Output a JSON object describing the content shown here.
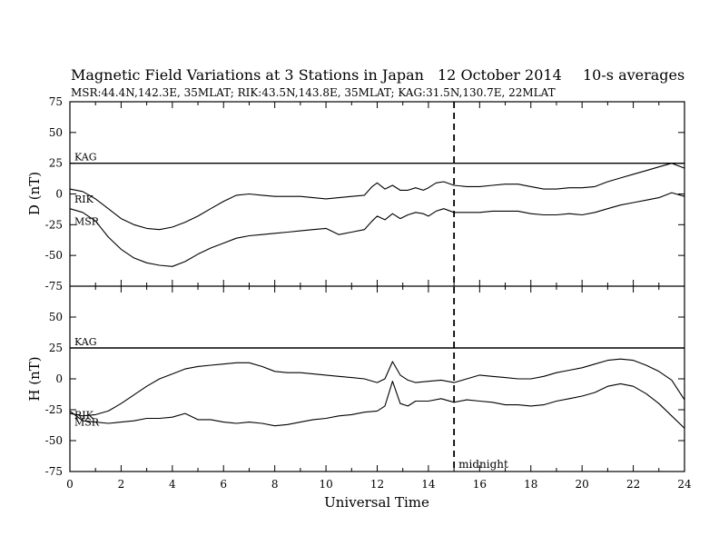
{
  "header": {
    "title": "Magnetic Field Variations at 3 Stations in Japan",
    "date": "12 October 2014",
    "averaging": "10-s averages",
    "stations": "MSR:44.4N,142.3E, 35MLAT;  RIK:43.5N,143.8E, 35MLAT;  KAG:31.5N,130.7E, 22MLAT"
  },
  "chart_data": [
    {
      "type": "line",
      "panel": "D",
      "ylabel": "D (nT)",
      "xlabel": "",
      "xlim": [
        0,
        24
      ],
      "ylim": [
        -75,
        75
      ],
      "yticks": [
        75,
        50,
        25,
        0,
        -25,
        -50,
        -75
      ],
      "xticks": [
        0,
        2,
        4,
        6,
        8,
        10,
        12,
        14,
        16,
        18,
        20,
        22,
        24
      ],
      "series": [
        {
          "name": "KAG",
          "x": [
            0,
            24
          ],
          "values": [
            25,
            25
          ]
        },
        {
          "name": "RIK",
          "x": [
            0,
            0.5,
            1,
            1.5,
            2,
            2.5,
            3,
            3.5,
            4,
            4.5,
            5,
            5.5,
            6,
            6.5,
            7,
            7.5,
            8,
            8.5,
            9,
            9.5,
            10,
            10.5,
            11,
            11.5,
            11.8,
            12,
            12.3,
            12.6,
            12.9,
            13.2,
            13.5,
            13.8,
            14,
            14.3,
            14.6,
            15,
            15.5,
            16,
            16.5,
            17,
            17.5,
            18,
            18.5,
            19,
            19.5,
            20,
            20.5,
            21,
            21.5,
            22,
            22.5,
            23,
            23.5,
            24
          ],
          "values": [
            4,
            2,
            -4,
            -12,
            -20,
            -25,
            -28,
            -29,
            -27,
            -23,
            -18,
            -12,
            -6,
            -1,
            0,
            -1,
            -2,
            -2,
            -2,
            -3,
            -4,
            -3,
            -2,
            -1,
            6,
            9,
            4,
            7,
            3,
            3,
            5,
            3,
            5,
            9,
            10,
            7,
            6,
            6,
            7,
            8,
            8,
            6,
            4,
            4,
            5,
            5,
            6,
            10,
            13,
            16,
            19,
            22,
            25,
            21
          ]
        },
        {
          "name": "MSR",
          "x": [
            0,
            0.5,
            1,
            1.5,
            2,
            2.5,
            3,
            3.5,
            4,
            4.5,
            5,
            5.5,
            6,
            6.5,
            7,
            7.5,
            8,
            8.5,
            9,
            9.5,
            10,
            10.5,
            11,
            11.5,
            11.8,
            12,
            12.3,
            12.6,
            12.9,
            13.2,
            13.5,
            13.8,
            14,
            14.3,
            14.6,
            15,
            15.5,
            16,
            16.5,
            17,
            17.5,
            18,
            18.5,
            19,
            19.5,
            20,
            20.5,
            21,
            21.5,
            22,
            22.5,
            23,
            23.5,
            24
          ],
          "values": [
            -12,
            -15,
            -22,
            -35,
            -45,
            -52,
            -56,
            -58,
            -59,
            -55,
            -49,
            -44,
            -40,
            -36,
            -34,
            -33,
            -32,
            -31,
            -30,
            -29,
            -28,
            -33,
            -31,
            -29,
            -22,
            -18,
            -21,
            -16,
            -20,
            -17,
            -15,
            -16,
            -18,
            -14,
            -12,
            -15,
            -15,
            -15,
            -14,
            -14,
            -14,
            -16,
            -17,
            -17,
            -16,
            -17,
            -15,
            -12,
            -9,
            -7,
            -5,
            -3,
            1,
            -2
          ]
        }
      ]
    },
    {
      "type": "line",
      "panel": "H",
      "ylabel": "H (nT)",
      "xlabel": "Universal Time",
      "xlim": [
        0,
        24
      ],
      "ylim": [
        -75,
        75
      ],
      "yticks": [
        75,
        50,
        25,
        0,
        -25,
        -50,
        -75
      ],
      "xticks": [
        0,
        2,
        4,
        6,
        8,
        10,
        12,
        14,
        16,
        18,
        20,
        22,
        24
      ],
      "series": [
        {
          "name": "KAG",
          "x": [
            0,
            24
          ],
          "values": [
            25,
            25
          ]
        },
        {
          "name": "RIK",
          "x": [
            0,
            0.5,
            1,
            1.5,
            2,
            2.5,
            3,
            3.5,
            4,
            4.5,
            5,
            5.5,
            6,
            6.5,
            7,
            7.5,
            8,
            8.5,
            9,
            9.5,
            10,
            10.5,
            11,
            11.5,
            12,
            12.3,
            12.6,
            12.9,
            13.2,
            13.5,
            14,
            14.5,
            15,
            15.5,
            16,
            16.5,
            17,
            17.5,
            18,
            18.5,
            19,
            19.5,
            20,
            20.5,
            21,
            21.5,
            22,
            22.5,
            23,
            23.5,
            24
          ],
          "values": [
            -28,
            -30,
            -29,
            -26,
            -20,
            -13,
            -6,
            0,
            4,
            8,
            10,
            11,
            12,
            13,
            13,
            10,
            6,
            5,
            5,
            4,
            3,
            2,
            1,
            0,
            -3,
            0,
            14,
            3,
            -1,
            -3,
            -2,
            -1,
            -3,
            0,
            3,
            2,
            1,
            0,
            0,
            2,
            5,
            7,
            9,
            12,
            15,
            16,
            15,
            11,
            6,
            -1,
            -17
          ]
        },
        {
          "name": "MSR",
          "x": [
            0,
            0.5,
            1,
            1.5,
            2,
            2.5,
            3,
            3.5,
            4,
            4.5,
            5,
            5.5,
            6,
            6.5,
            7,
            7.5,
            8,
            8.5,
            9,
            9.5,
            10,
            10.5,
            11,
            11.5,
            12,
            12.3,
            12.6,
            12.9,
            13.2,
            13.5,
            14,
            14.5,
            15,
            15.5,
            16,
            16.5,
            17,
            17.5,
            18,
            18.5,
            19,
            19.5,
            20,
            20.5,
            21,
            21.5,
            22,
            22.5,
            23,
            23.5,
            24
          ],
          "values": [
            -26,
            -34,
            -35,
            -36,
            -35,
            -34,
            -32,
            -32,
            -31,
            -28,
            -33,
            -33,
            -35,
            -36,
            -35,
            -36,
            -38,
            -37,
            -35,
            -33,
            -32,
            -30,
            -29,
            -27,
            -26,
            -22,
            -2,
            -20,
            -22,
            -18,
            -18,
            -16,
            -19,
            -17,
            -18,
            -19,
            -21,
            -21,
            -22,
            -21,
            -18,
            -16,
            -14,
            -11,
            -6,
            -4,
            -6,
            -12,
            -20,
            -30,
            -40
          ]
        }
      ]
    }
  ],
  "annotations": {
    "midnight": {
      "label": "midnight",
      "x": 15
    }
  }
}
